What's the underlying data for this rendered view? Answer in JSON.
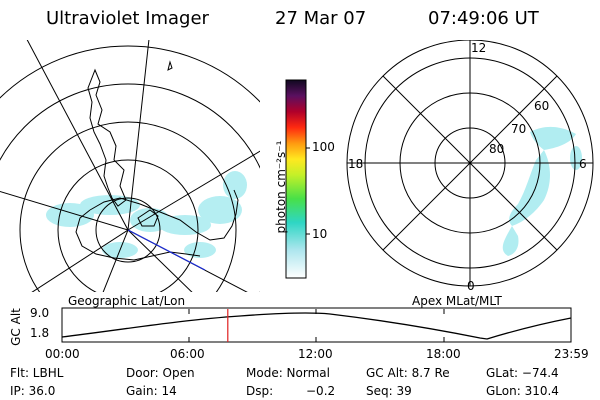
{
  "header": {
    "title": "Ultraviolet Imager",
    "date": "27 Mar 07",
    "time": "07:49:06 UT"
  },
  "left_map": {
    "caption": "Geographic Lat/Lon"
  },
  "right_map": {
    "caption": "Apex MLat/MLT",
    "mlt_labels": {
      "top": "12",
      "left": "18",
      "right": "6",
      "bottom": "0"
    },
    "mlat_labels": [
      "60",
      "70",
      "80"
    ]
  },
  "colorbar": {
    "unit": "photon cm⁻²s⁻¹",
    "ticks": [
      "100",
      "10"
    ],
    "scale": "log"
  },
  "altitude": {
    "axis_label": "GC Alt",
    "y_ticks": [
      "9.0",
      "1.8"
    ],
    "time_ticks": [
      "00:00",
      "06:00",
      "12:00",
      "18:00",
      "23:59"
    ],
    "current_time_hours": 7.818
  },
  "status": {
    "filter": "Flt: LBHL",
    "door": "Door: Open",
    "mode": "Mode: Normal",
    "gc_alt": "GC Alt: 8.7 Re",
    "glat": "GLat: −74.4",
    "ip": "IP: 36.0",
    "gain": "Gain: 14",
    "dsp_label": "Dsp:",
    "dsp_value": "−0.2",
    "seq": "Seq: 39",
    "glon": "GLon: 310.4"
  },
  "colors": {
    "aurora": "#9fe6ec",
    "coast": "#000000",
    "track": "#1a2bd6",
    "current_time_marker": "#e02020"
  }
}
